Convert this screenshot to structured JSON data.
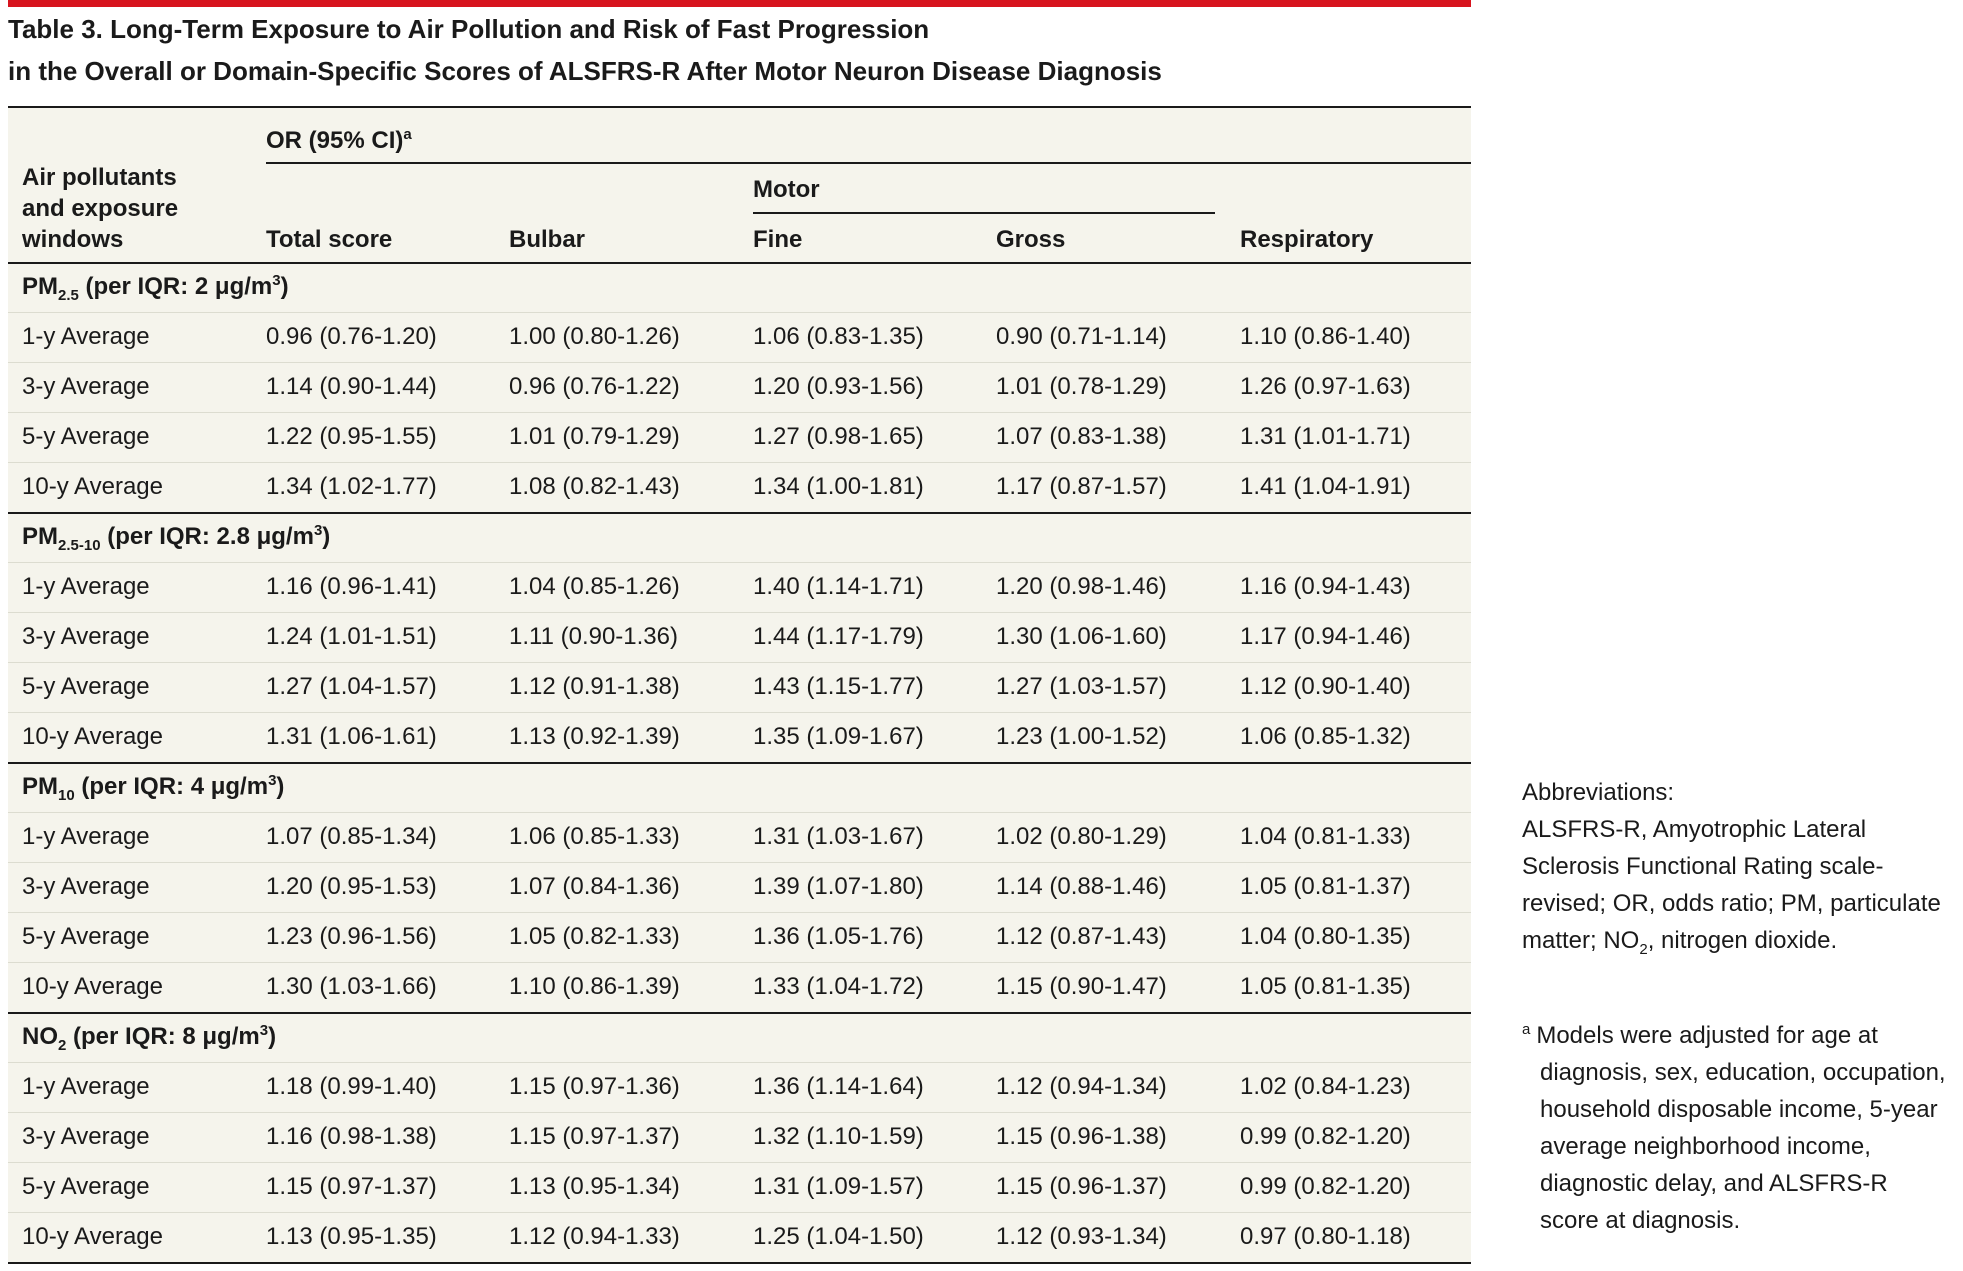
{
  "title": [
    "Table 3. Long-Term Exposure to Air Pollution and Risk of Fast Progression",
    "in the Overall or Domain-Specific Scores of ALSFRS-R After Motor Neuron Disease Diagnosis"
  ],
  "header": {
    "row_header": [
      "Air pollutants",
      "and exposure",
      "windows"
    ],
    "group": "OR (95% CI)",
    "group_note": "a",
    "motor": "Motor",
    "columns": [
      "Total score",
      "Bulbar",
      "Fine",
      "Gross",
      "Respiratory"
    ]
  },
  "sections": [
    {
      "label": {
        "name": "PM",
        "sub": "2.5",
        "text": " (per IQR: 2 μg/m",
        "sup": "3",
        "close": ")"
      },
      "rows": [
        [
          "1-y Average",
          "0.96 (0.76-1.20)",
          "1.00 (0.80-1.26)",
          "1.06 (0.83-1.35)",
          "0.90 (0.71-1.14)",
          "1.10 (0.86-1.40)"
        ],
        [
          "3-y Average",
          "1.14 (0.90-1.44)",
          "0.96 (0.76-1.22)",
          "1.20 (0.93-1.56)",
          "1.01 (0.78-1.29)",
          "1.26 (0.97-1.63)"
        ],
        [
          "5-y Average",
          "1.22 (0.95-1.55)",
          "1.01 (0.79-1.29)",
          "1.27 (0.98-1.65)",
          "1.07 (0.83-1.38)",
          "1.31 (1.01-1.71)"
        ],
        [
          "10-y Average",
          "1.34 (1.02-1.77)",
          "1.08 (0.82-1.43)",
          "1.34 (1.00-1.81)",
          "1.17 (0.87-1.57)",
          "1.41 (1.04-1.91)"
        ]
      ]
    },
    {
      "label": {
        "name": "PM",
        "sub": "2.5-10",
        "text": " (per IQR: 2.8 μg/m",
        "sup": "3",
        "close": ")"
      },
      "rows": [
        [
          "1-y Average",
          "1.16 (0.96-1.41)",
          "1.04 (0.85-1.26)",
          "1.40 (1.14-1.71)",
          "1.20 (0.98-1.46)",
          "1.16 (0.94-1.43)"
        ],
        [
          "3-y Average",
          "1.24 (1.01-1.51)",
          "1.11 (0.90-1.36)",
          "1.44 (1.17-1.79)",
          "1.30 (1.06-1.60)",
          "1.17 (0.94-1.46)"
        ],
        [
          "5-y Average",
          "1.27 (1.04-1.57)",
          "1.12 (0.91-1.38)",
          "1.43 (1.15-1.77)",
          "1.27 (1.03-1.57)",
          "1.12 (0.90-1.40)"
        ],
        [
          "10-y Average",
          "1.31 (1.06-1.61)",
          "1.13 (0.92-1.39)",
          "1.35 (1.09-1.67)",
          "1.23 (1.00-1.52)",
          "1.06 (0.85-1.32)"
        ]
      ]
    },
    {
      "label": {
        "name": "PM",
        "sub": "10",
        "text": " (per IQR: 4 μg/m",
        "sup": "3",
        "close": ")"
      },
      "rows": [
        [
          "1-y Average",
          "1.07 (0.85-1.34)",
          "1.06 (0.85-1.33)",
          "1.31 (1.03-1.67)",
          "1.02 (0.80-1.29)",
          "1.04 (0.81-1.33)"
        ],
        [
          "3-y Average",
          "1.20 (0.95-1.53)",
          "1.07 (0.84-1.36)",
          "1.39 (1.07-1.80)",
          "1.14 (0.88-1.46)",
          "1.05 (0.81-1.37)"
        ],
        [
          "5-y Average",
          "1.23 (0.96-1.56)",
          "1.05 (0.82-1.33)",
          "1.36 (1.05-1.76)",
          "1.12 (0.87-1.43)",
          "1.04 (0.80-1.35)"
        ],
        [
          "10-y Average",
          "1.30 (1.03-1.66)",
          "1.10 (0.86-1.39)",
          "1.33 (1.04-1.72)",
          "1.15 (0.90-1.47)",
          "1.05 (0.81-1.35)"
        ]
      ]
    },
    {
      "label": {
        "name": "NO",
        "sub": "2",
        "text": " (per IQR: 8 μg/m",
        "sup": "3",
        "close": ")"
      },
      "rows": [
        [
          "1-y Average",
          "1.18 (0.99-1.40)",
          "1.15 (0.97-1.36)",
          "1.36 (1.14-1.64)",
          "1.12 (0.94-1.34)",
          "1.02 (0.84-1.23)"
        ],
        [
          "3-y Average",
          "1.16 (0.98-1.38)",
          "1.15 (0.97-1.37)",
          "1.32 (1.10-1.59)",
          "1.15 (0.96-1.38)",
          "0.99 (0.82-1.20)"
        ],
        [
          "5-y Average",
          "1.15 (0.97-1.37)",
          "1.13 (0.95-1.34)",
          "1.31 (1.09-1.57)",
          "1.15 (0.96-1.37)",
          "0.99 (0.82-1.20)"
        ],
        [
          "10-y Average",
          "1.13 (0.95-1.35)",
          "1.12 (0.94-1.33)",
          "1.25 (1.04-1.50)",
          "1.12 (0.93-1.34)",
          "0.97 (0.80-1.18)"
        ]
      ]
    }
  ],
  "notes": {
    "abbreviations": {
      "heading": "Abbreviations:",
      "text": "ALSFRS-R, Amyotrophic Lateral Sclerosis Functional Rating scale-revised; OR, odds ratio; PM, particulate matter; NO",
      "sub": "2",
      "end": ", nitrogen dioxide."
    },
    "footnote": {
      "marker": "a",
      "text": "Models were adjusted for age at diagnosis, sex, education, occupation, household disposable income, 5-year average neighborhood income, diagnostic delay, and ALSFRS-R score at diagnosis."
    }
  }
}
